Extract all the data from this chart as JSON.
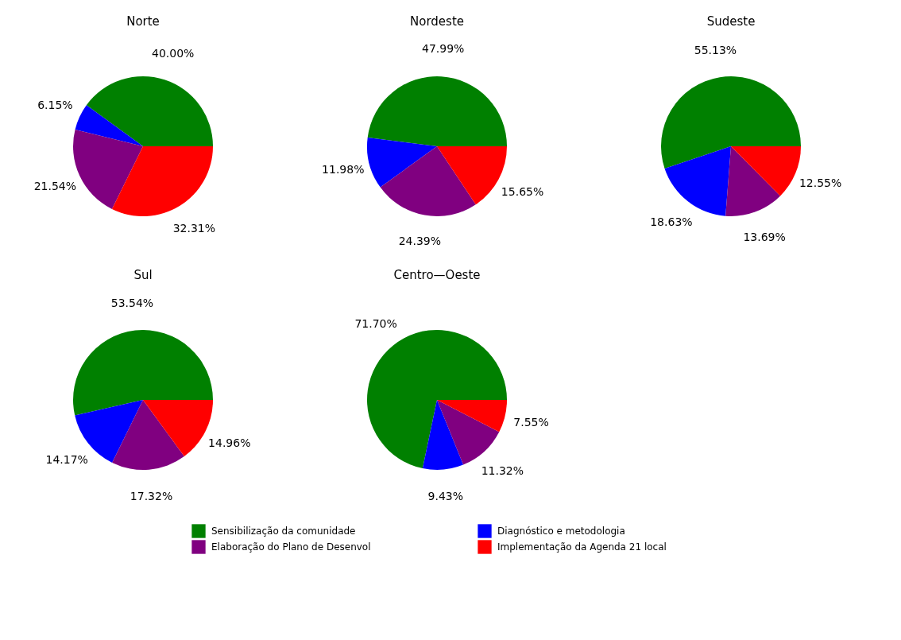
{
  "chart_data": [
    {
      "type": "pie",
      "title": "Norte",
      "categories": [
        "Sensibilização da comunidade",
        "Diagnóstico e metodologia",
        "Elaboração do Plano de Desenvol",
        "Implementação da Agenda 21 local"
      ],
      "values": [
        40.0,
        6.15,
        21.54,
        32.31
      ],
      "value_labels": [
        "40.00%",
        "6.15%",
        "21.54%",
        "32.31%"
      ],
      "colors": [
        "#008000",
        "#0000ff",
        "#800080",
        "#ff0000"
      ],
      "legend": "bottom"
    },
    {
      "type": "pie",
      "title": "Nordeste",
      "categories": [
        null,
        null,
        null,
        null
      ],
      "values": [
        47.99,
        11.98,
        24.39,
        15.65
      ],
      "value_labels": [
        "47.99%",
        "11.98%",
        "24.39%",
        "15.65%"
      ],
      "colors": [
        "#008000",
        "#0000ff",
        "#800080",
        "#ff0000"
      ]
    },
    {
      "type": "pie",
      "title": "Sudeste",
      "categories": [
        null,
        null,
        null,
        null
      ],
      "values": [
        55.13,
        18.63,
        13.69,
        12.55
      ],
      "value_labels": [
        "55.13%",
        "18.63%",
        "13.69%",
        "12.55%"
      ],
      "colors": [
        "#008000",
        "#0000ff",
        "#800080",
        "#ff0000"
      ]
    },
    {
      "type": "pie",
      "title": "Sul",
      "categories": [
        null,
        null,
        null,
        null
      ],
      "values": [
        53.54,
        14.17,
        17.32,
        14.96
      ],
      "value_labels": [
        "53.54%",
        "14.17%",
        "17.32%",
        "14.96%"
      ],
      "colors": [
        "#008000",
        "#0000ff",
        "#800080",
        "#ff0000"
      ]
    },
    {
      "type": "pie",
      "title": "Centro—Oeste",
      "categories": [
        null,
        null,
        null,
        null
      ],
      "values": [
        71.7,
        9.43,
        11.32,
        7.55
      ],
      "value_labels": [
        "71.70%",
        "9.43%",
        "11.32%",
        "7.55%"
      ],
      "colors": [
        "#008000",
        "#0000ff",
        "#800080",
        "#ff0000"
      ]
    }
  ]
}
